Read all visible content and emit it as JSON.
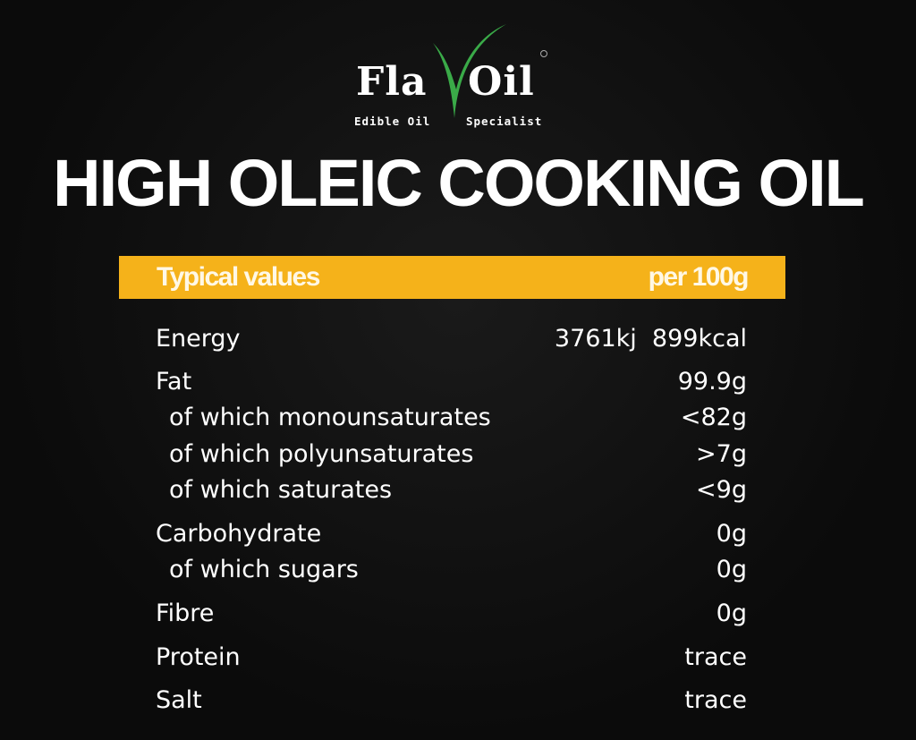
{
  "brand": {
    "name_left": "Fla",
    "name_right": "Oil",
    "tagline_left": "Edible Oil",
    "tagline_right": "Specialist",
    "colors": {
      "green": "#3aaa48",
      "white": "#ffffff"
    }
  },
  "title": "HIGH OLEIC COOKING OIL",
  "table": {
    "header": {
      "label": "Typical values",
      "unit": "per 100g",
      "color": "#f5b21a"
    },
    "rows": [
      {
        "name": "Energy",
        "value": "3761kj  899kcal"
      },
      {
        "name": "Fat",
        "value": "99.9g"
      },
      {
        "name": "of which monounsaturates",
        "value": "<82g"
      },
      {
        "name": "of which polyunsaturates",
        "value": ">7g"
      },
      {
        "name": "of which saturates",
        "value": "<9g"
      },
      {
        "name": "Carbohydrate",
        "value": "0g"
      },
      {
        "name": "of which sugars",
        "value": "0g"
      },
      {
        "name": "Fibre",
        "value": "0g"
      },
      {
        "name": "Protein",
        "value": "trace"
      },
      {
        "name": "Salt",
        "value": "trace"
      }
    ]
  }
}
